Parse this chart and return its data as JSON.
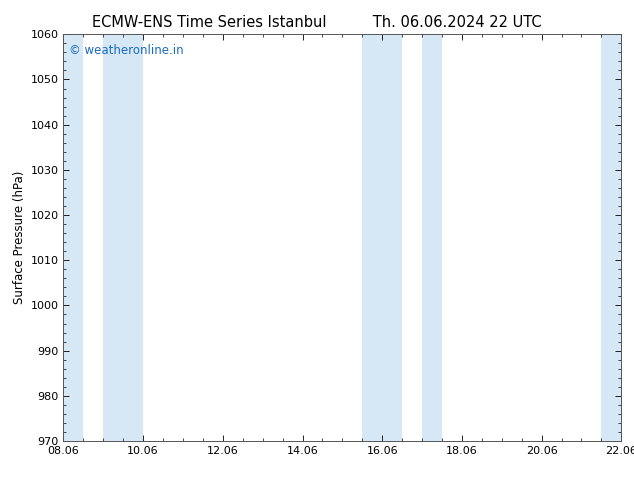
{
  "title_left": "ECMW-ENS Time Series Istanbul",
  "title_right": "Th. 06.06.2024 22 UTC",
  "ylabel": "Surface Pressure (hPa)",
  "ylim": [
    970,
    1060
  ],
  "yticks": [
    970,
    980,
    990,
    1000,
    1010,
    1020,
    1030,
    1040,
    1050,
    1060
  ],
  "x_start_days": 0,
  "x_end_days": 14,
  "xlim_days": [
    0,
    14
  ],
  "xtick_day_positions": [
    0,
    2,
    4,
    6,
    8,
    10,
    12,
    14
  ],
  "xtick_labels": [
    "08.06",
    "10.06",
    "12.06",
    "14.06",
    "16.06",
    "18.06",
    "20.06",
    "22.06"
  ],
  "shaded_bands": [
    {
      "xmin": 0.0,
      "xmax": 0.5
    },
    {
      "xmin": 1.0,
      "xmax": 2.0
    },
    {
      "xmin": 7.5,
      "xmax": 8.5
    },
    {
      "xmin": 9.0,
      "xmax": 9.5
    },
    {
      "xmin": 13.5,
      "xmax": 14.0
    }
  ],
  "band_color": "#d6e8f5",
  "background_color": "#ffffff",
  "watermark": "© weatheronline.in",
  "watermark_color": "#1a6bbf",
  "watermark_fontsize": 8.5,
  "title_fontsize": 10.5,
  "ylabel_fontsize": 8.5,
  "tick_fontsize": 8,
  "border_color": "#555555"
}
